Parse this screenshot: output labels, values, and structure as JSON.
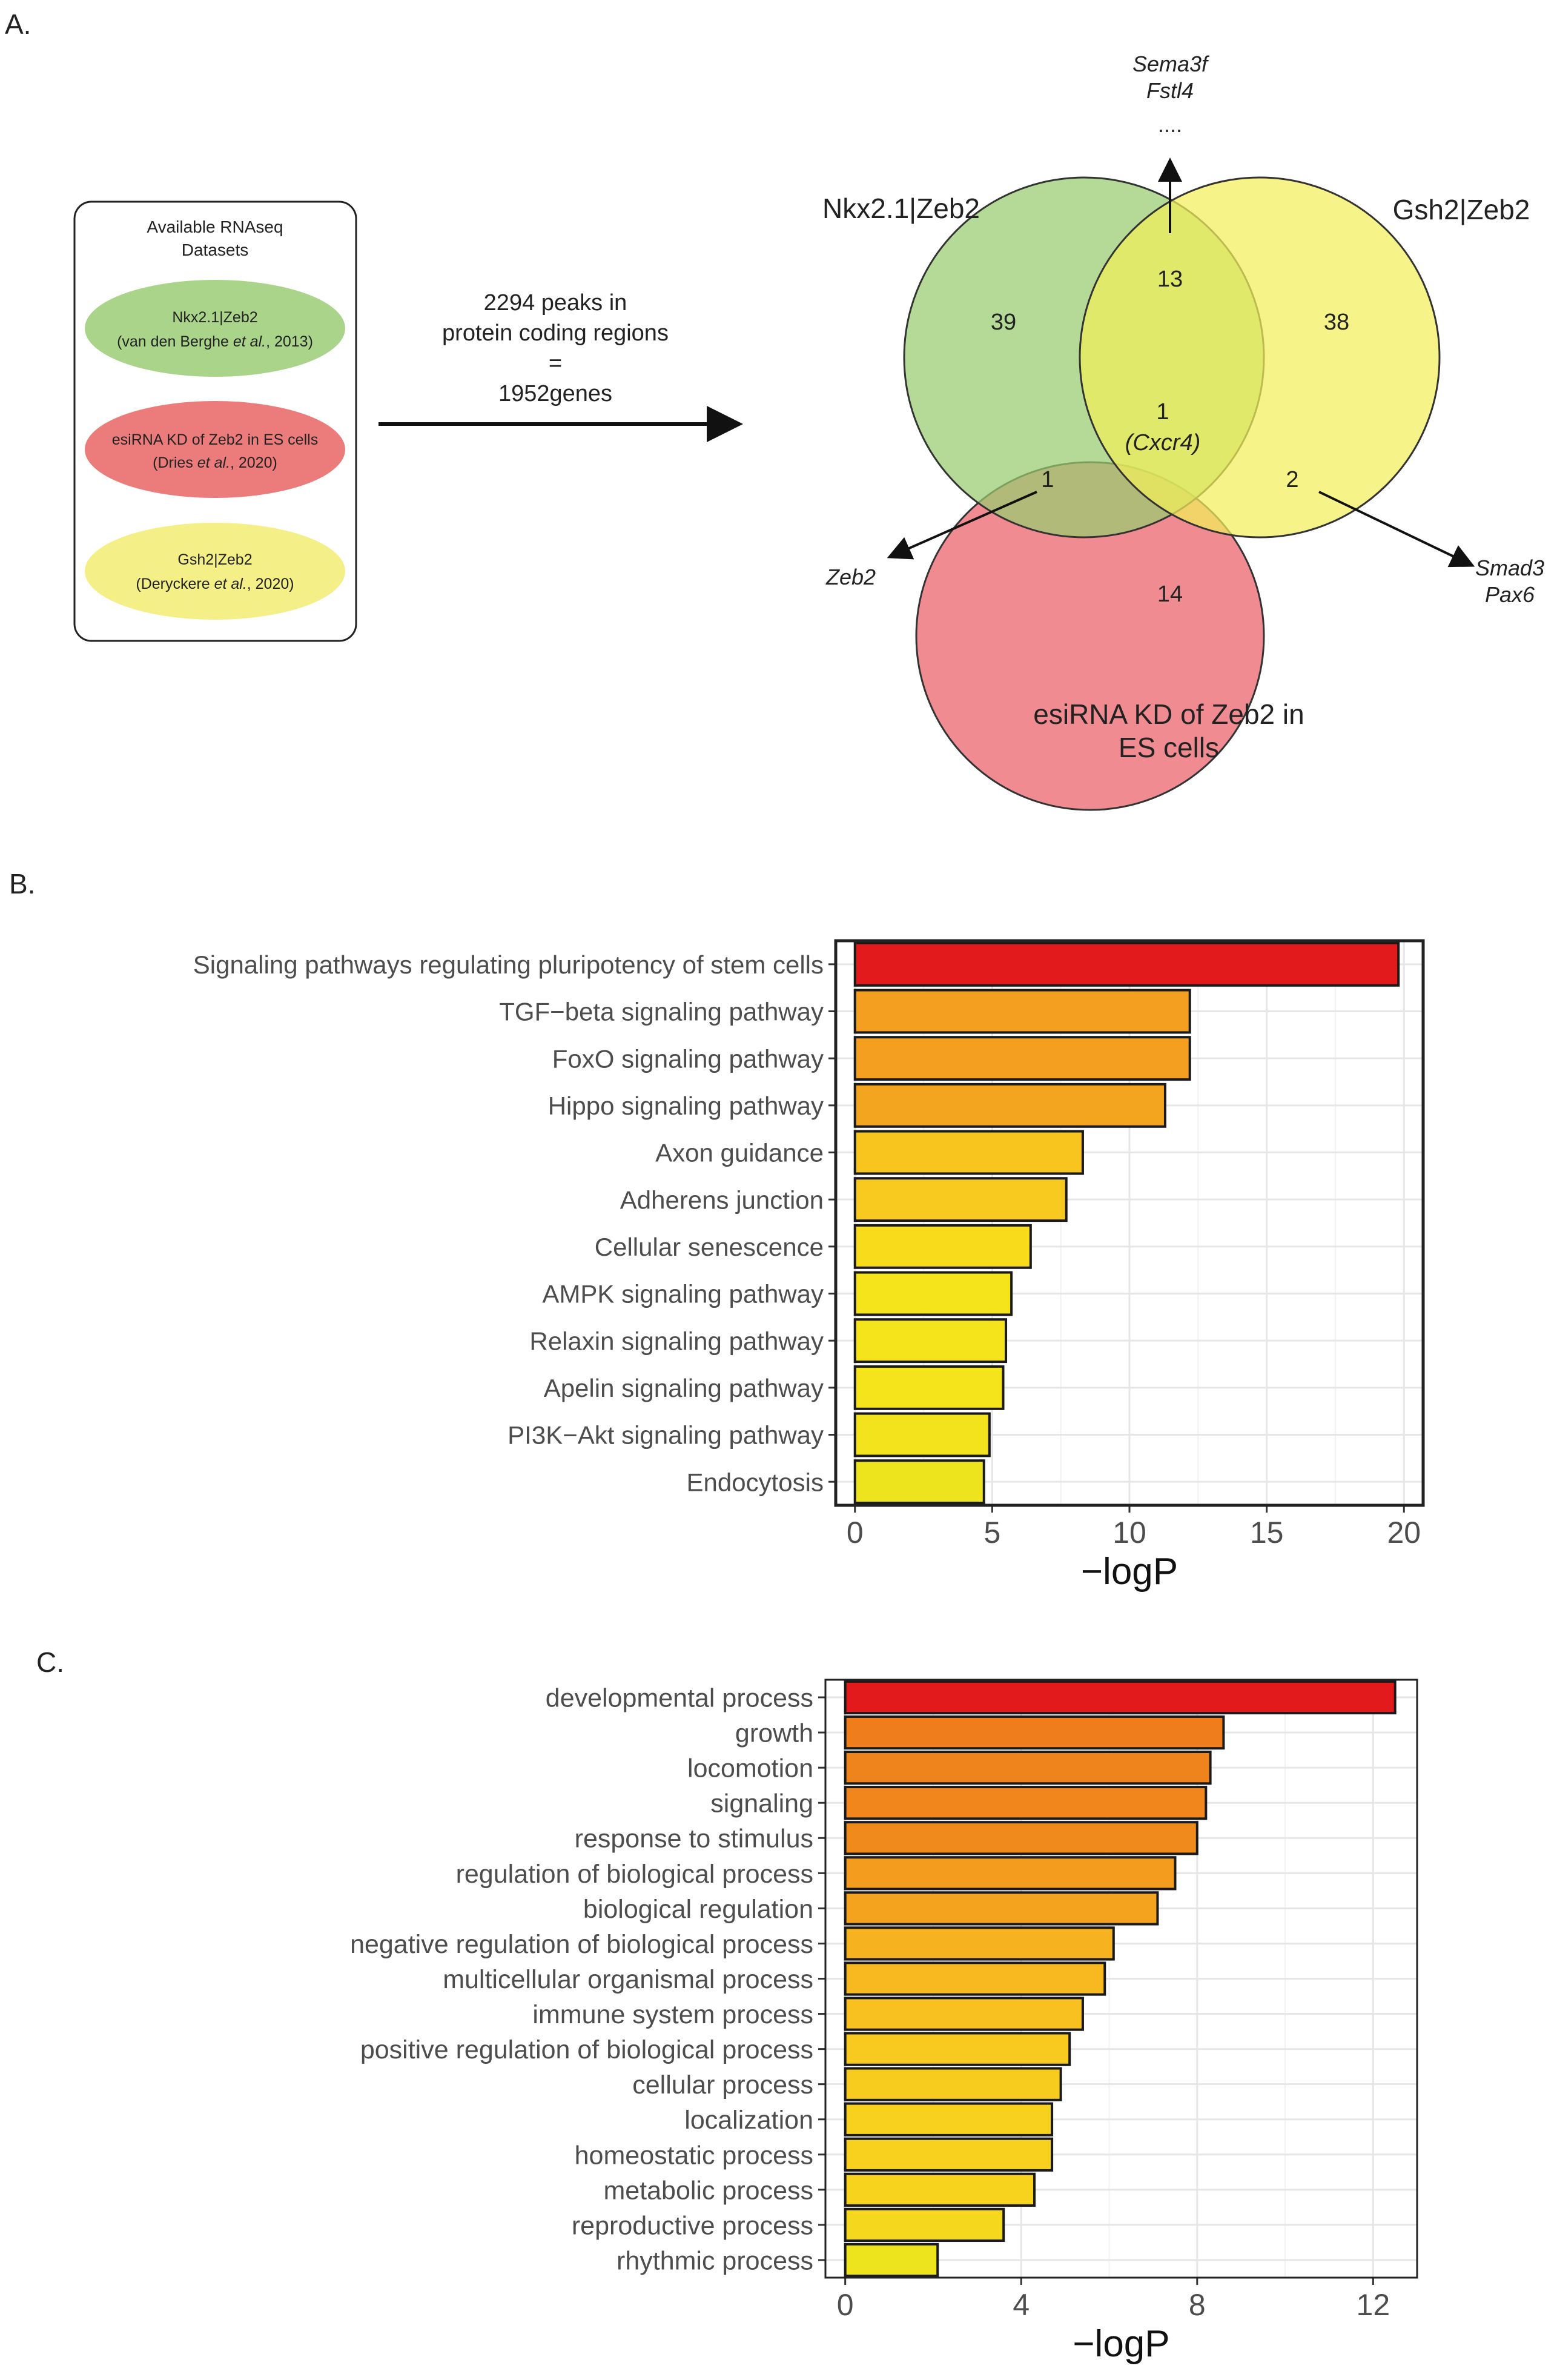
{
  "panel_a": {
    "label": "A.",
    "datasets_box": {
      "title_line1": "Available RNAseq",
      "title_line2": "Datasets",
      "nkx": {
        "line1": "Nkx2.1|Zeb2",
        "line2_pre": "(van den Berghe ",
        "line2_em": "et al.",
        "line2_post": ", 2013)",
        "color": "#a9d48a"
      },
      "esirna": {
        "line1": "esiRNA KD of Zeb2 in ES cells",
        "line2_pre": "(Dries ",
        "line2_em": "et al.",
        "line2_post": ", 2020)",
        "color": "#ec7b7b"
      },
      "gsh2": {
        "line1": "Gsh2|Zeb2",
        "line2_pre": "(Deryckere ",
        "line2_em": "et al.",
        "line2_post": ", 2020)",
        "color": "#f4ef86"
      }
    },
    "arrow_text": {
      "line1": "2294 peaks in",
      "line2": "protein coding regions",
      "line3": "=",
      "line4": "1952genes"
    },
    "venn": {
      "set_labels": {
        "nkx": "Nkx2.1|Zeb2",
        "gsh2": "Gsh2|Zeb2",
        "esirna_line1": "esiRNA KD of Zeb2 in",
        "esirna_line2": "ES cells"
      },
      "counts": {
        "nkx_only": "39",
        "gsh2_only": "38",
        "esirna_only": "14",
        "nkx_gsh2": "13",
        "nkx_esirna": "1",
        "gsh2_esirna": "2",
        "all_three": "1",
        "all_three_gene": "(Cxcr4)"
      },
      "callouts": {
        "top_line1": "Sema3f",
        "top_line2": "Fstl4",
        "top_line3": "....",
        "left": "Zeb2",
        "right_line1": "Smad3",
        "right_line2": "Pax6"
      },
      "colors": {
        "nkx": "#98cc6f",
        "gsh2": "#f2ee5a",
        "esirna": "#ea6a72"
      }
    }
  },
  "chart_data": [
    {
      "panel_label": "B.",
      "type": "bar",
      "orientation": "horizontal",
      "categories": [
        "Signaling pathways regulating pluripotency of stem cells",
        "TGF−beta signaling pathway",
        "FoxO signaling pathway",
        "Hippo signaling pathway",
        "Axon guidance",
        "Adherens junction",
        "Cellular senescence",
        "AMPK signaling pathway",
        "Relaxin signaling pathway",
        "Apelin signaling pathway",
        "PI3K−Akt signaling pathway",
        "Endocytosis"
      ],
      "values": [
        19.8,
        12.2,
        12.2,
        11.3,
        8.3,
        7.7,
        6.4,
        5.7,
        5.5,
        5.4,
        4.9,
        4.7
      ],
      "colors": [
        "#e31a1c",
        "#f49f1f",
        "#f49f1f",
        "#f4a520",
        "#f8c51e",
        "#f8c91e",
        "#f8dc1c",
        "#f5e31b",
        "#f5e41b",
        "#f5e41b",
        "#f3e31c",
        "#eee41d"
      ],
      "xlabel": "−logP",
      "ylabel": "",
      "xlim": [
        -0.7,
        20.7
      ],
      "xticks": [
        "0",
        "5",
        "10",
        "15",
        "20"
      ],
      "grid": true
    },
    {
      "panel_label": "C.",
      "type": "bar",
      "orientation": "horizontal",
      "categories": [
        "developmental process",
        "growth",
        "locomotion",
        "signaling",
        "response to stimulus",
        "regulation of biological process",
        "biological regulation",
        "negative regulation of biological process",
        "multicellular organismal process",
        "immune system process",
        "positive regulation of biological process",
        "cellular process",
        "localization",
        "homeostatic process",
        "metabolic process",
        "reproductive process",
        "rhythmic process"
      ],
      "values": [
        12.5,
        8.6,
        8.3,
        8.2,
        8.0,
        7.5,
        7.1,
        6.1,
        5.9,
        5.4,
        5.1,
        4.9,
        4.7,
        4.7,
        4.3,
        3.6,
        2.1
      ],
      "colors": [
        "#e31a1c",
        "#ef7d1c",
        "#f0841c",
        "#f0861c",
        "#f08a1c",
        "#f49c1e",
        "#f4a31f",
        "#f7b31f",
        "#f7b820",
        "#f8c11f",
        "#f8c91e",
        "#f8cc1e",
        "#f8d01e",
        "#f8d01e",
        "#f8d31e",
        "#f5d81d",
        "#eee41d"
      ],
      "xlabel": "−logP",
      "ylabel": "",
      "xlim": [
        -0.45,
        13.0
      ],
      "xticks": [
        "0",
        "4",
        "8",
        "12"
      ],
      "grid": true
    }
  ]
}
